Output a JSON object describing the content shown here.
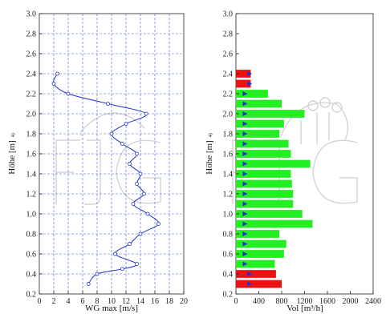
{
  "chart_data": [
    {
      "type": "line",
      "xlabel": "WG max [m/s]",
      "ylabel": "Höhe [m]",
      "ylabel_sup": "4)",
      "xlim": [
        0,
        20
      ],
      "ylim": [
        0.2,
        3.0
      ],
      "xticks": [
        0,
        2,
        4,
        6,
        8,
        10,
        12,
        14,
        16,
        18,
        20
      ],
      "yticks": [
        0.2,
        0.4,
        0.6,
        0.8,
        1.0,
        1.2,
        1.4,
        1.6,
        1.8,
        2.0,
        2.2,
        2.4,
        2.6,
        2.8,
        3.0
      ],
      "ytick_labels": [
        "0.2",
        "0.4",
        "0.6",
        "0.8",
        "1.0",
        "1.2",
        "1.4",
        "1.6",
        "1.8",
        "2.0",
        "2.2",
        "2.4",
        "2.6",
        "2.8",
        "3.0"
      ],
      "grid": true,
      "color": "#2233cc",
      "x": [
        2.5,
        2.0,
        4.0,
        9.5,
        14.8,
        12.0,
        10.0,
        11.5,
        13.5,
        12.5,
        14.0,
        13.5,
        14.5,
        13.0,
        15.0,
        16.5,
        14.0,
        12.5,
        10.5,
        13.5,
        11.5,
        8.0,
        6.8
      ],
      "y": [
        2.4,
        2.3,
        2.2,
        2.1,
        2.0,
        1.9,
        1.8,
        1.7,
        1.6,
        1.5,
        1.4,
        1.3,
        1.2,
        1.1,
        1.0,
        0.9,
        0.8,
        0.7,
        0.6,
        0.5,
        0.45,
        0.4,
        0.3
      ]
    },
    {
      "type": "bar",
      "orientation": "horizontal",
      "xlabel": "Vol [m³/h]",
      "ylabel": "Höhe [m]",
      "ylabel_sup": "4)",
      "xlim": [
        0,
        2400
      ],
      "ylim": [
        0.2,
        3.0
      ],
      "xticks": [
        0,
        400,
        800,
        1200,
        1600,
        2000,
        2400
      ],
      "yticks": [
        0.2,
        0.4,
        0.6,
        0.8,
        1.0,
        1.2,
        1.4,
        1.6,
        1.8,
        2.0,
        2.2,
        2.4,
        2.6,
        2.8,
        3.0
      ],
      "ytick_labels": [
        "0.2",
        "0.4",
        "0.6",
        "0.8",
        "1.0",
        "1.2",
        "1.4",
        "1.6",
        "1.8",
        "2.0",
        "2.2",
        "2.4",
        "2.6",
        "2.8",
        "3.0"
      ],
      "grid": false,
      "colors": {
        "in": "#22ee22",
        "out": "#ee1111",
        "arrow": "#2233cc"
      },
      "bars": [
        {
          "y": 2.4,
          "value": 260,
          "direction": "out"
        },
        {
          "y": 2.3,
          "value": 260,
          "direction": "out"
        },
        {
          "y": 2.2,
          "value": 560,
          "direction": "in"
        },
        {
          "y": 2.1,
          "value": 800,
          "direction": "in"
        },
        {
          "y": 2.0,
          "value": 1200,
          "direction": "in"
        },
        {
          "y": 1.9,
          "value": 840,
          "direction": "in"
        },
        {
          "y": 1.8,
          "value": 760,
          "direction": "in"
        },
        {
          "y": 1.7,
          "value": 920,
          "direction": "in"
        },
        {
          "y": 1.6,
          "value": 960,
          "direction": "in"
        },
        {
          "y": 1.5,
          "value": 1300,
          "direction": "in"
        },
        {
          "y": 1.4,
          "value": 960,
          "direction": "in"
        },
        {
          "y": 1.3,
          "value": 980,
          "direction": "in"
        },
        {
          "y": 1.2,
          "value": 1000,
          "direction": "in"
        },
        {
          "y": 1.1,
          "value": 1000,
          "direction": "in"
        },
        {
          "y": 1.0,
          "value": 1160,
          "direction": "in"
        },
        {
          "y": 0.9,
          "value": 1340,
          "direction": "in"
        },
        {
          "y": 0.8,
          "value": 760,
          "direction": "in"
        },
        {
          "y": 0.7,
          "value": 880,
          "direction": "in"
        },
        {
          "y": 0.6,
          "value": 840,
          "direction": "in"
        },
        {
          "y": 0.5,
          "value": 680,
          "direction": "in"
        },
        {
          "y": 0.4,
          "value": 700,
          "direction": "out"
        },
        {
          "y": 0.3,
          "value": 800,
          "direction": "out"
        }
      ]
    }
  ]
}
